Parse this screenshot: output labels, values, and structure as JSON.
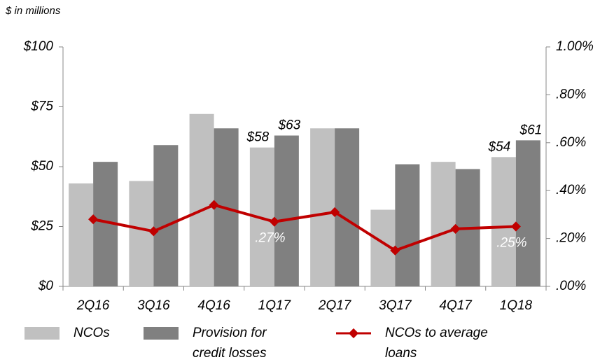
{
  "chart_data": {
    "type": "bar",
    "subtitle": "$ in millions",
    "categories": [
      "2Q16",
      "3Q16",
      "4Q16",
      "1Q17",
      "2Q17",
      "3Q17",
      "4Q17",
      "1Q18"
    ],
    "series": [
      {
        "name": "NCOs",
        "color": "#c0c0c0",
        "values": [
          43,
          44,
          72,
          58,
          66,
          32,
          52,
          54
        ],
        "value_labels": [
          null,
          null,
          null,
          "$58",
          null,
          null,
          null,
          "$54"
        ]
      },
      {
        "name": "Provision for credit losses",
        "color": "#808080",
        "values": [
          52,
          59,
          66,
          63,
          66,
          51,
          49,
          61
        ],
        "value_labels": [
          null,
          null,
          null,
          "$63",
          null,
          null,
          null,
          "$61"
        ]
      },
      {
        "name": "NCOs to average loans",
        "type": "line",
        "axis": "y2",
        "color": "#c00000",
        "values": [
          0.28,
          0.23,
          0.34,
          0.27,
          0.31,
          0.15,
          0.24,
          0.25
        ],
        "value_labels": [
          null,
          null,
          null,
          ".27%",
          null,
          null,
          null,
          ".25%"
        ]
      }
    ],
    "ylim": [
      0,
      100
    ],
    "yticks": [
      {
        "value": 0,
        "label": "$0"
      },
      {
        "value": 25,
        "label": "$25"
      },
      {
        "value": 50,
        "label": "$50"
      },
      {
        "value": 75,
        "label": "$75"
      },
      {
        "value": 100,
        "label": "$100"
      }
    ],
    "y2lim": [
      0,
      1
    ],
    "y2ticks": [
      {
        "value": 0,
        "label": ".00%"
      },
      {
        "value": 0.2,
        "label": ".20%"
      },
      {
        "value": 0.4,
        "label": ".40%"
      },
      {
        "value": 0.6,
        "label": ".60%"
      },
      {
        "value": 0.8,
        "label": ".80%"
      },
      {
        "value": 1,
        "label": "1.00%"
      }
    ],
    "legend": "bottom"
  }
}
